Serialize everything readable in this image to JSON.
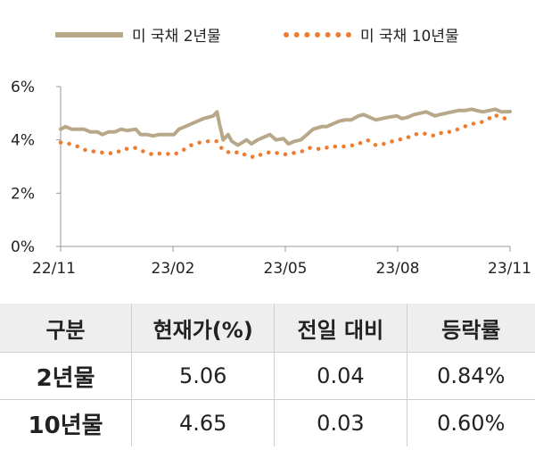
{
  "chart_data": {
    "type": "line",
    "legend_position": "top",
    "grid": false,
    "ylim": [
      0,
      6
    ],
    "yticks": [
      "0%",
      "2%",
      "4%",
      "6%"
    ],
    "x_tick_labels": [
      "22/11",
      "23/02",
      "23/05",
      "23/08",
      "23/11"
    ],
    "xlim": [
      "2022-11-01",
      "2023-11-01"
    ],
    "series": [
      {
        "name": "미 국채 2년물",
        "color": "#b8a88a",
        "style": "solid",
        "points": [
          [
            "2022-11-01",
            4.4
          ],
          [
            "2022-11-05",
            4.5
          ],
          [
            "2022-11-10",
            4.4
          ],
          [
            "2022-11-15",
            4.4
          ],
          [
            "2022-11-20",
            4.4
          ],
          [
            "2022-11-25",
            4.3
          ],
          [
            "2022-12-01",
            4.3
          ],
          [
            "2022-12-05",
            4.2
          ],
          [
            "2022-12-10",
            4.3
          ],
          [
            "2022-12-15",
            4.3
          ],
          [
            "2022-12-20",
            4.4
          ],
          [
            "2022-12-25",
            4.35
          ],
          [
            "2023-01-01",
            4.4
          ],
          [
            "2023-01-05",
            4.2
          ],
          [
            "2023-01-10",
            4.2
          ],
          [
            "2023-01-15",
            4.15
          ],
          [
            "2023-01-20",
            4.2
          ],
          [
            "2023-01-25",
            4.2
          ],
          [
            "2023-02-01",
            4.2
          ],
          [
            "2023-02-05",
            4.4
          ],
          [
            "2023-02-10",
            4.5
          ],
          [
            "2023-02-15",
            4.6
          ],
          [
            "2023-02-20",
            4.7
          ],
          [
            "2023-02-25",
            4.8
          ],
          [
            "2023-03-01",
            4.85
          ],
          [
            "2023-03-05",
            4.9
          ],
          [
            "2023-03-08",
            5.05
          ],
          [
            "2023-03-10",
            4.6
          ],
          [
            "2023-03-13",
            4.0
          ],
          [
            "2023-03-17",
            4.2
          ],
          [
            "2023-03-20",
            3.95
          ],
          [
            "2023-03-25",
            3.8
          ],
          [
            "2023-04-01",
            4.0
          ],
          [
            "2023-04-05",
            3.85
          ],
          [
            "2023-04-10",
            4.0
          ],
          [
            "2023-04-15",
            4.1
          ],
          [
            "2023-04-20",
            4.2
          ],
          [
            "2023-04-25",
            4.0
          ],
          [
            "2023-05-01",
            4.05
          ],
          [
            "2023-05-05",
            3.85
          ],
          [
            "2023-05-10",
            3.95
          ],
          [
            "2023-05-15",
            4.0
          ],
          [
            "2023-05-20",
            4.2
          ],
          [
            "2023-05-25",
            4.4
          ],
          [
            "2023-06-01",
            4.5
          ],
          [
            "2023-06-05",
            4.5
          ],
          [
            "2023-06-10",
            4.6
          ],
          [
            "2023-06-15",
            4.7
          ],
          [
            "2023-06-20",
            4.75
          ],
          [
            "2023-06-25",
            4.75
          ],
          [
            "2023-07-01",
            4.9
          ],
          [
            "2023-07-05",
            4.95
          ],
          [
            "2023-07-10",
            4.85
          ],
          [
            "2023-07-15",
            4.75
          ],
          [
            "2023-07-20",
            4.8
          ],
          [
            "2023-07-25",
            4.85
          ],
          [
            "2023-08-01",
            4.9
          ],
          [
            "2023-08-05",
            4.8
          ],
          [
            "2023-08-10",
            4.85
          ],
          [
            "2023-08-15",
            4.95
          ],
          [
            "2023-08-20",
            5.0
          ],
          [
            "2023-08-25",
            5.05
          ],
          [
            "2023-09-01",
            4.9
          ],
          [
            "2023-09-05",
            4.95
          ],
          [
            "2023-09-10",
            5.0
          ],
          [
            "2023-09-15",
            5.05
          ],
          [
            "2023-09-20",
            5.1
          ],
          [
            "2023-09-25",
            5.1
          ],
          [
            "2023-10-01",
            5.15
          ],
          [
            "2023-10-05",
            5.1
          ],
          [
            "2023-10-10",
            5.05
          ],
          [
            "2023-10-15",
            5.1
          ],
          [
            "2023-10-20",
            5.15
          ],
          [
            "2023-10-25",
            5.05
          ],
          [
            "2023-11-01",
            5.06
          ]
        ]
      },
      {
        "name": "미 국채 10년물",
        "color": "#ee7d31",
        "style": "dotted",
        "points": [
          [
            "2022-11-01",
            3.9
          ],
          [
            "2022-11-08",
            3.85
          ],
          [
            "2022-11-15",
            3.75
          ],
          [
            "2022-11-22",
            3.6
          ],
          [
            "2022-12-01",
            3.55
          ],
          [
            "2022-12-08",
            3.5
          ],
          [
            "2022-12-15",
            3.5
          ],
          [
            "2022-12-22",
            3.65
          ],
          [
            "2023-01-01",
            3.7
          ],
          [
            "2023-01-08",
            3.55
          ],
          [
            "2023-01-15",
            3.45
          ],
          [
            "2023-01-22",
            3.5
          ],
          [
            "2023-02-01",
            3.45
          ],
          [
            "2023-02-08",
            3.6
          ],
          [
            "2023-02-15",
            3.8
          ],
          [
            "2023-02-22",
            3.9
          ],
          [
            "2023-03-01",
            3.95
          ],
          [
            "2023-03-08",
            3.95
          ],
          [
            "2023-03-13",
            3.6
          ],
          [
            "2023-03-20",
            3.5
          ],
          [
            "2023-03-27",
            3.55
          ],
          [
            "2023-04-01",
            3.4
          ],
          [
            "2023-04-08",
            3.35
          ],
          [
            "2023-04-15",
            3.5
          ],
          [
            "2023-04-22",
            3.55
          ],
          [
            "2023-05-01",
            3.45
          ],
          [
            "2023-05-08",
            3.5
          ],
          [
            "2023-05-15",
            3.55
          ],
          [
            "2023-05-22",
            3.7
          ],
          [
            "2023-06-01",
            3.65
          ],
          [
            "2023-06-08",
            3.75
          ],
          [
            "2023-06-15",
            3.75
          ],
          [
            "2023-06-22",
            3.75
          ],
          [
            "2023-07-01",
            3.85
          ],
          [
            "2023-07-08",
            4.0
          ],
          [
            "2023-07-15",
            3.8
          ],
          [
            "2023-07-22",
            3.85
          ],
          [
            "2023-08-01",
            4.0
          ],
          [
            "2023-08-08",
            4.05
          ],
          [
            "2023-08-15",
            4.2
          ],
          [
            "2023-08-22",
            4.25
          ],
          [
            "2023-09-01",
            4.15
          ],
          [
            "2023-09-08",
            4.3
          ],
          [
            "2023-09-15",
            4.3
          ],
          [
            "2023-09-22",
            4.45
          ],
          [
            "2023-10-01",
            4.6
          ],
          [
            "2023-10-08",
            4.65
          ],
          [
            "2023-10-15",
            4.8
          ],
          [
            "2023-10-19",
            4.95
          ],
          [
            "2023-10-24",
            4.85
          ],
          [
            "2023-10-28",
            4.8
          ],
          [
            "2023-11-01",
            4.65
          ]
        ]
      }
    ]
  },
  "table": {
    "headers": [
      "구분",
      "현재가(%)",
      "전일 대비",
      "등락률"
    ],
    "rows": [
      [
        "2년물",
        "5.06",
        "0.04",
        "0.84%"
      ],
      [
        "10년물",
        "4.65",
        "0.03",
        "0.60%"
      ]
    ]
  }
}
